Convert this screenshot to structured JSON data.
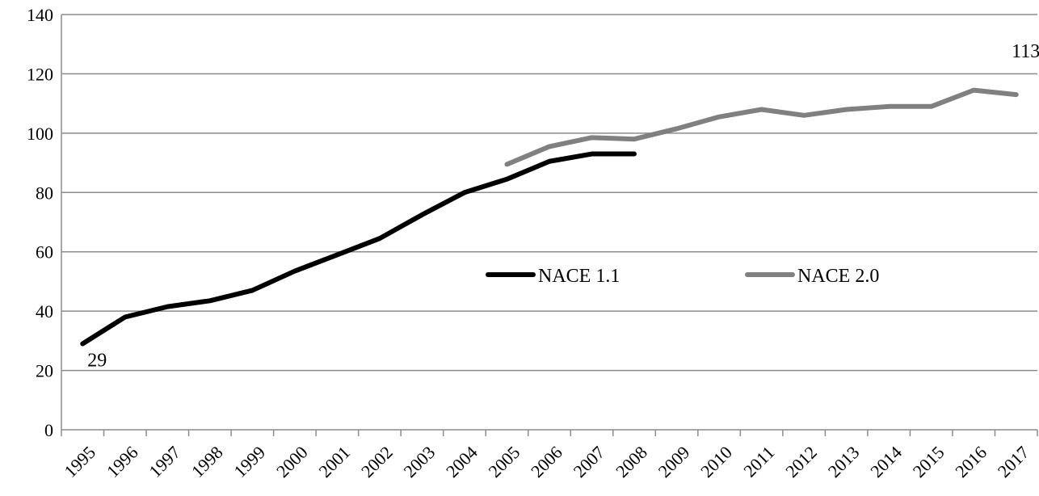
{
  "chart_data": {
    "type": "line",
    "title": "",
    "xlabel": "",
    "ylabel": "",
    "categories": [
      "1995",
      "1996",
      "1997",
      "1998",
      "1999",
      "2000",
      "2001",
      "2002",
      "2003",
      "2004",
      "2005",
      "2006",
      "2007",
      "2008",
      "2009",
      "2010",
      "2011",
      "2012",
      "2013",
      "2014",
      "2015",
      "2016",
      "2017"
    ],
    "ylim": [
      0,
      140
    ],
    "yticks": [
      0,
      20,
      40,
      60,
      80,
      100,
      120,
      140
    ],
    "grid": true,
    "legend_position": "center-right",
    "series": [
      {
        "name": "NACE 1.1",
        "color": "#000000",
        "values": [
          29,
          38,
          41.5,
          43.5,
          47,
          53.5,
          59,
          64.5,
          72.5,
          80,
          84.5,
          90.5,
          93,
          93,
          null,
          null,
          null,
          null,
          null,
          null,
          null,
          null,
          null
        ]
      },
      {
        "name": "NACE 2.0",
        "color": "#808080",
        "values": [
          null,
          null,
          null,
          null,
          null,
          null,
          null,
          null,
          null,
          null,
          89.5,
          95.5,
          98.5,
          98,
          101.5,
          105.5,
          108,
          106,
          108,
          109,
          109,
          114.5,
          113
        ]
      }
    ],
    "annotations": [
      {
        "text": "29",
        "category": "1995",
        "value": 29,
        "series": "NACE 1.1"
      },
      {
        "text": "113",
        "category": "2017",
        "value": 113,
        "series": "NACE 2.0"
      }
    ]
  }
}
